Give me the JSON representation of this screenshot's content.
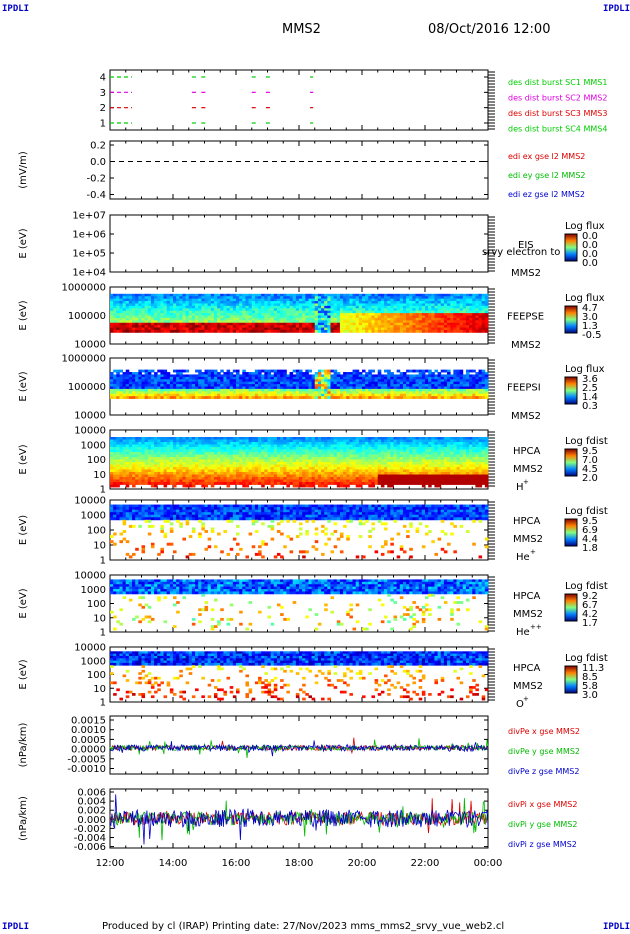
{
  "corner_label": "IPDLI",
  "header": {
    "spacecraft": "MMS2",
    "datetime": "08/Oct/2016 12:00"
  },
  "footer": {
    "text": "Produced by cl (IRAP)   Printing date: 27/Nov/2023   mms_mms2_srvy_vue_web2.cl"
  },
  "time_axis": {
    "ticks": [
      "12:00",
      "14:00",
      "16:00",
      "18:00",
      "20:00",
      "22:00",
      "00:00"
    ]
  },
  "colors": {
    "red": "#ff0000",
    "green": "#00cc00",
    "blue": "#0000cc",
    "magenta": "#e000e0"
  },
  "chart_data": [
    {
      "id": "burst",
      "type": "line",
      "y_ticks": [
        "4",
        "3",
        "2",
        "1"
      ],
      "series": [
        {
          "name": "des dist burst SC1 MMS1",
          "y": 4,
          "color": "#00cc00",
          "segments": [
            [
              12.0,
              12.7
            ],
            [
              14.6,
              14.75
            ],
            [
              14.9,
              15.05
            ],
            [
              16.5,
              16.7
            ],
            [
              16.95,
              17.1
            ],
            [
              18.35,
              18.45
            ]
          ]
        },
        {
          "name": "des dist burst SC2 MMS2",
          "y": 3,
          "color": "#e000e0",
          "segments": [
            [
              12.0,
              12.7
            ],
            [
              14.6,
              14.75
            ],
            [
              14.9,
              15.05
            ],
            [
              16.5,
              16.7
            ],
            [
              16.95,
              17.1
            ],
            [
              18.35,
              18.45
            ]
          ]
        },
        {
          "name": "des dist burst SC3 MMS3",
          "y": 2,
          "color": "#dd0000",
          "segments": [
            [
              12.0,
              12.7
            ],
            [
              14.6,
              14.75
            ],
            [
              14.9,
              15.05
            ],
            [
              16.5,
              16.7
            ],
            [
              16.95,
              17.1
            ],
            [
              18.35,
              18.45
            ]
          ]
        },
        {
          "name": "des dist burst SC4 MMS4",
          "y": 1,
          "color": "#00cc00",
          "segments": [
            [
              12.0,
              12.7
            ],
            [
              14.6,
              14.75
            ],
            [
              14.9,
              15.05
            ],
            [
              16.5,
              16.7
            ],
            [
              16.95,
              17.1
            ],
            [
              18.35,
              18.45
            ]
          ]
        }
      ]
    },
    {
      "id": "edi",
      "type": "line",
      "ylabel": "(mV/m)",
      "y_ticks": [
        "0.2",
        "0.0",
        "-0.2",
        "-0.4"
      ],
      "series": [
        {
          "name": "edi ex gse l2 MMS2",
          "color": "#dd0000"
        },
        {
          "name": "edi ey gse l2 MMS2",
          "color": "#00bb00"
        },
        {
          "name": "edi ez gse l2 MMS2",
          "color": "#0000cc"
        }
      ]
    },
    {
      "id": "eis",
      "type": "heatmap",
      "ylabel": "E (eV)",
      "y_ticks": [
        "1e+07",
        "1e+06",
        "1e+05",
        "1e+04"
      ],
      "instrument": "EIS",
      "spacecraft": "MMS2",
      "overlay_text": "srvy electron to",
      "colorbar": {
        "title": "Log flux",
        "ticks": [
          "0.0",
          "0.0",
          "0.0",
          "0.0"
        ]
      }
    },
    {
      "id": "feepse",
      "type": "heatmap",
      "ylabel": "E (eV)",
      "y_ticks": [
        "1000000",
        "100000",
        "10000"
      ],
      "instrument": "FEEPSE",
      "spacecraft": "MMS2",
      "colorbar": {
        "title": "Log flux",
        "ticks": [
          "4.7",
          "3.0",
          "1.3",
          "-0.5"
        ]
      }
    },
    {
      "id": "feepsi",
      "type": "heatmap",
      "ylabel": "E (eV)",
      "y_ticks": [
        "1000000",
        "100000",
        "10000"
      ],
      "instrument": "FEEPSI",
      "spacecraft": "MMS2",
      "colorbar": {
        "title": "Log flux",
        "ticks": [
          "3.6",
          "2.5",
          "1.4",
          "0.3"
        ]
      }
    },
    {
      "id": "hpca_h",
      "type": "heatmap",
      "ylabel": "E (eV)",
      "y_ticks": [
        "10000",
        "1000",
        "100",
        "10",
        "1"
      ],
      "instrument": "HPCA",
      "spacecraft": "MMS2",
      "species": "H",
      "charge": "+",
      "colorbar": {
        "title": "Log fdist",
        "ticks": [
          "9.5",
          "7.0",
          "4.5",
          "2.0"
        ]
      }
    },
    {
      "id": "hpca_he1",
      "type": "heatmap",
      "ylabel": "E (eV)",
      "y_ticks": [
        "10000",
        "1000",
        "100",
        "10",
        "1"
      ],
      "instrument": "HPCA",
      "spacecraft": "MMS2",
      "species": "He",
      "charge": "+",
      "colorbar": {
        "title": "Log fdist",
        "ticks": [
          "9.5",
          "6.9",
          "4.4",
          "1.8"
        ]
      }
    },
    {
      "id": "hpca_he2",
      "type": "heatmap",
      "ylabel": "E (eV)",
      "y_ticks": [
        "10000",
        "1000",
        "100",
        "10",
        "1"
      ],
      "instrument": "HPCA",
      "spacecraft": "MMS2",
      "species": "He",
      "charge": "++",
      "colorbar": {
        "title": "Log fdist",
        "ticks": [
          "9.2",
          "6.7",
          "4.2",
          "1.7"
        ]
      }
    },
    {
      "id": "hpca_o",
      "type": "heatmap",
      "ylabel": "E (eV)",
      "y_ticks": [
        "10000",
        "1000",
        "100",
        "10",
        "1"
      ],
      "instrument": "HPCA",
      "spacecraft": "MMS2",
      "species": "O",
      "charge": "+",
      "colorbar": {
        "title": "Log fdist",
        "ticks": [
          "11.3",
          "8.5",
          "5.8",
          "3.0"
        ]
      }
    },
    {
      "id": "divpe",
      "type": "line",
      "ylabel": "(nPa/km)",
      "y_ticks": [
        "0.0015",
        "0.0010",
        "0.0005",
        "0.0000",
        "-0.0005",
        "-0.0010"
      ],
      "series": [
        {
          "name": "divPe x gse MMS2",
          "color": "#dd0000"
        },
        {
          "name": "divPe y gse MMS2",
          "color": "#00bb00"
        },
        {
          "name": "divPe z gse MMS2",
          "color": "#0000cc"
        }
      ]
    },
    {
      "id": "divpi",
      "type": "line",
      "ylabel": "(nPa/km)",
      "y_ticks": [
        "0.006",
        "0.004",
        "0.002",
        "0.000",
        "-0.002",
        "-0.004",
        "-0.006"
      ],
      "series": [
        {
          "name": "divPi x gse MMS2",
          "color": "#dd0000"
        },
        {
          "name": "divPi y gse MMS2",
          "color": "#00bb00"
        },
        {
          "name": "divPi z gse MMS2",
          "color": "#0000cc"
        }
      ]
    }
  ]
}
